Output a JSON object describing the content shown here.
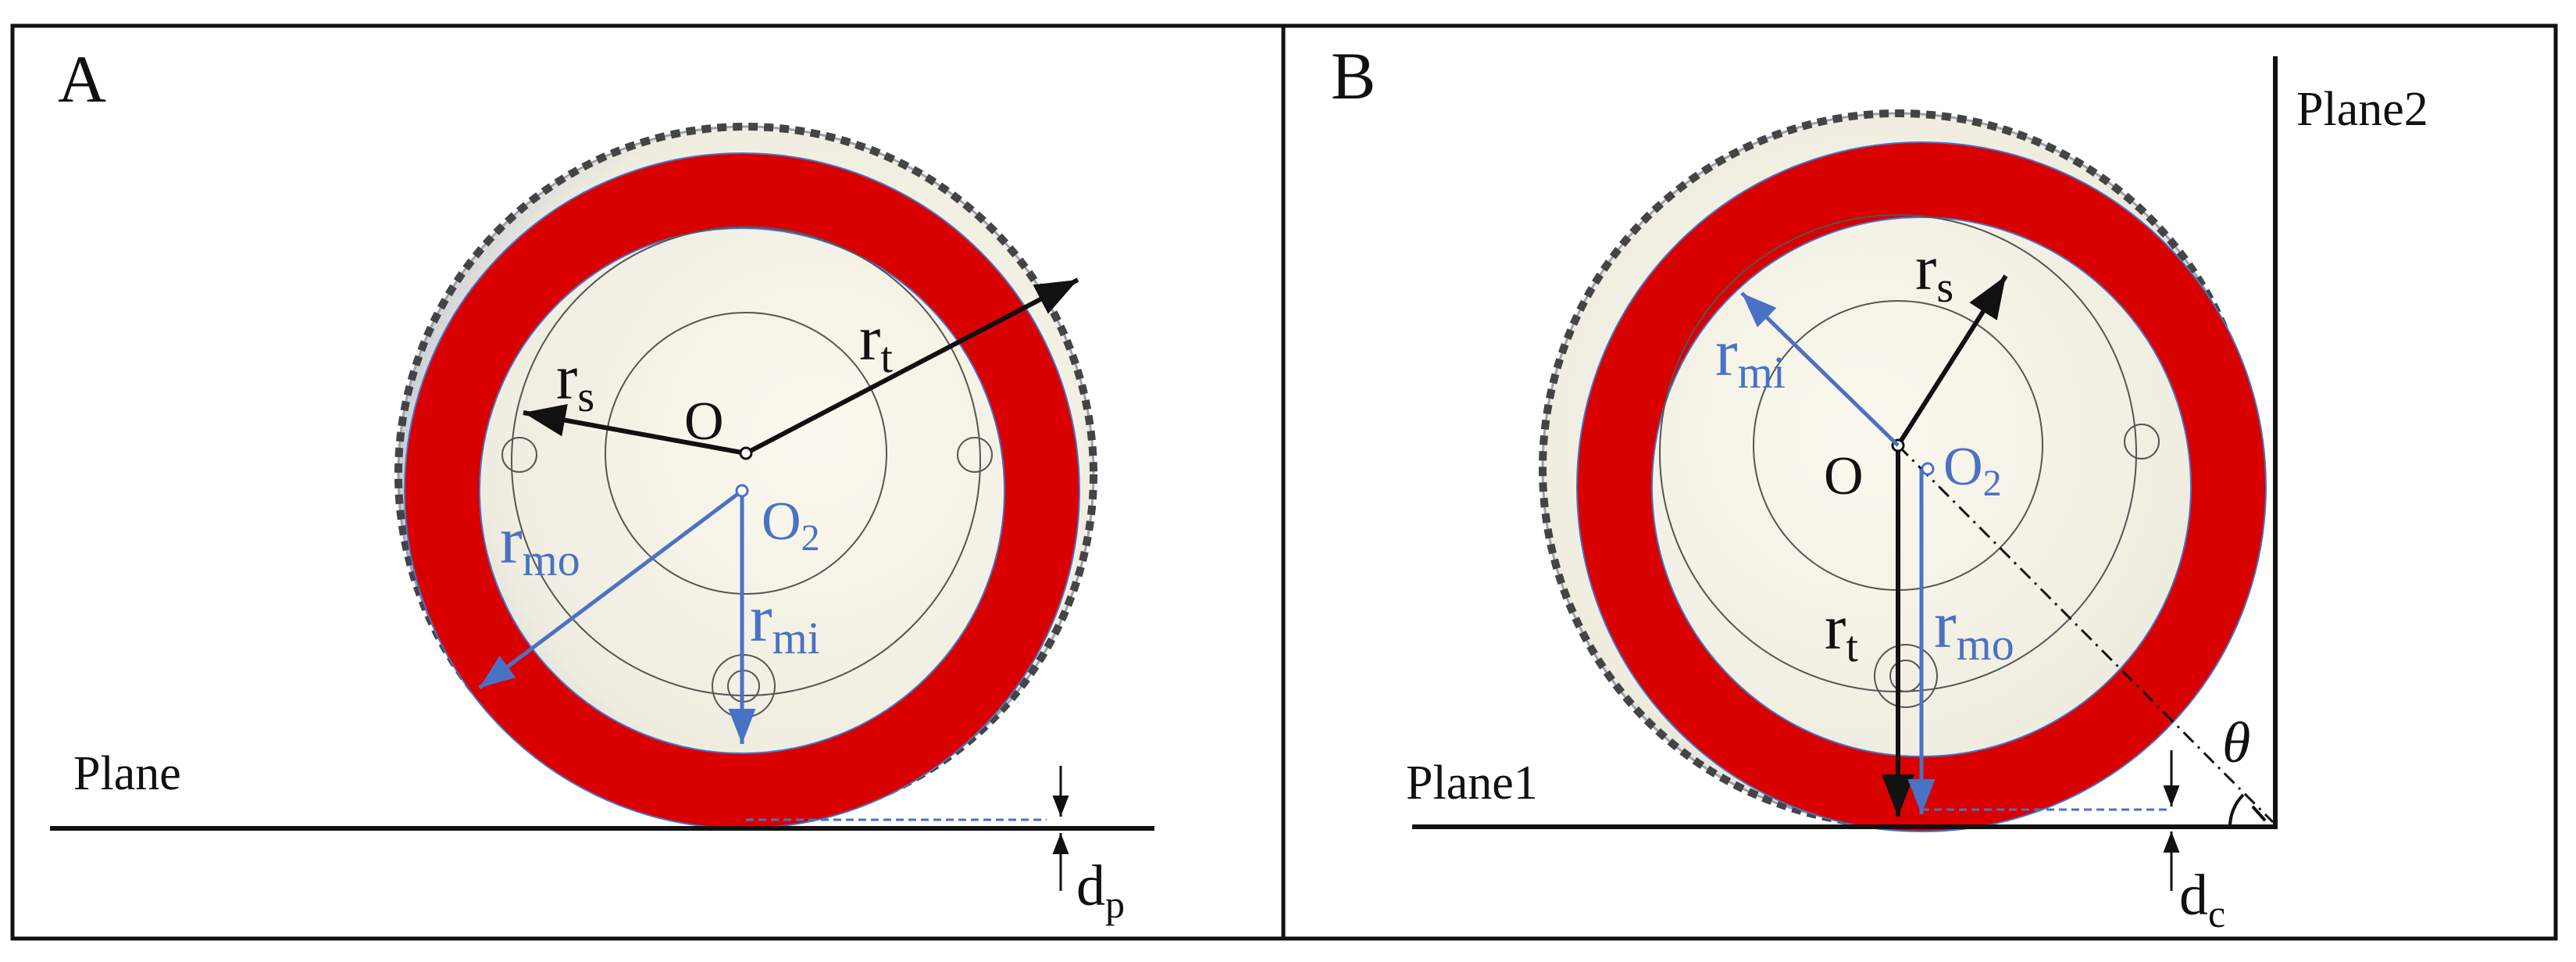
{
  "panels": [
    {
      "id": "A",
      "panel_label": "A",
      "plane_label": "Plane",
      "labels": {
        "center_o": "O",
        "center_o2_main": "O",
        "center_o2_sub": "2",
        "rs_main": "r",
        "rs_sub": "s",
        "rt_main": "r",
        "rt_sub": "t",
        "rmo_main": "r",
        "rmo_sub": "mo",
        "rmi_main": "r",
        "rmi_sub": "mi",
        "gap_main": "d",
        "gap_sub": "p"
      }
    },
    {
      "id": "B",
      "panel_label": "B",
      "plane1_label": "Plane1",
      "plane2_label": "Plane2",
      "angle_label": "θ",
      "labels": {
        "center_o": "O",
        "center_o2_main": "O",
        "center_o2_sub": "2",
        "rs_main": "r",
        "rs_sub": "s",
        "rt_main": "r",
        "rt_sub": "t",
        "rmo_main": "r",
        "rmo_sub": "mo",
        "rmi_main": "r",
        "rmi_sub": "mi",
        "gap_main": "d",
        "gap_sub": "c"
      }
    }
  ],
  "colors": {
    "magnet_ring": "#d90000",
    "radius_blue": "#4a72c4",
    "radius_black": "#111111",
    "wheel_body": "#f6f3e6",
    "frame": "#111111"
  }
}
